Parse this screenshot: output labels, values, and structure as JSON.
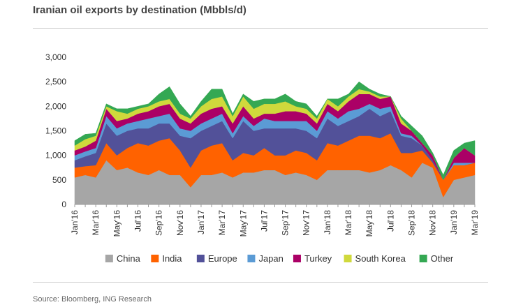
{
  "title": "Iranian oil exports by destination (Mbbls/d)",
  "source": "Source: Bloomberg, ING Research",
  "chart_data": {
    "type": "area",
    "stacked": true,
    "title": "Iranian oil exports by destination (Mbbls/d)",
    "xlabel": "",
    "ylabel": "",
    "ylim": [
      0,
      3000
    ],
    "yticks": [
      0,
      500,
      1000,
      1500,
      2000,
      2500,
      3000
    ],
    "ytick_labels": [
      "0",
      "500",
      "1,000",
      "1,500",
      "2,000",
      "2,500",
      "3,000"
    ],
    "x": [
      "Jan'16",
      "Feb'16",
      "Mar'16",
      "Apr'16",
      "May'16",
      "Jun'16",
      "Jul'16",
      "Aug'16",
      "Sep'16",
      "Oct'16",
      "Nov'16",
      "Dec'16",
      "Jan'17",
      "Feb'17",
      "Mar'17",
      "Apr'17",
      "May'17",
      "Jun'17",
      "Jul'17",
      "Aug'17",
      "Sep'17",
      "Oct'17",
      "Nov'17",
      "Dec'17",
      "Jan'18",
      "Feb'18",
      "Mar'18",
      "Apr'18",
      "May'18",
      "Jun'18",
      "Jul'18",
      "Aug'18",
      "Sep'18",
      "Oct'18",
      "Nov'18",
      "Dec'18",
      "Jan'19",
      "Feb'19",
      "Mar'19"
    ],
    "xtick_labels": [
      "Jan'16",
      "Mar'16",
      "May'16",
      "Jul'16",
      "Sep'16",
      "Nov'16",
      "Jan'17",
      "Mar'17",
      "May'17",
      "Jul'17",
      "Sep'17",
      "Nov'17",
      "Jan'18",
      "Mar'18",
      "May'18",
      "Jul'18",
      "Sep'18",
      "Nov'18",
      "Jan'19",
      "Mar'19"
    ],
    "legend_position": "bottom",
    "grid": false,
    "series": [
      {
        "name": "China",
        "color": "#a6a6a6",
        "values": [
          550,
          600,
          550,
          900,
          700,
          750,
          650,
          600,
          700,
          600,
          600,
          350,
          600,
          600,
          650,
          550,
          650,
          650,
          700,
          700,
          600,
          650,
          600,
          500,
          700,
          700,
          700,
          700,
          650,
          700,
          800,
          700,
          550,
          850,
          750,
          150,
          500,
          550,
          600
        ]
      },
      {
        "name": "India",
        "color": "#ff6200",
        "values": [
          200,
          180,
          250,
          350,
          300,
          400,
          600,
          600,
          600,
          750,
          500,
          400,
          500,
          600,
          600,
          350,
          400,
          350,
          450,
          300,
          400,
          450,
          450,
          400,
          550,
          500,
          600,
          700,
          750,
          650,
          650,
          350,
          500,
          250,
          100,
          350,
          300,
          250,
          250
        ]
      },
      {
        "name": "Europe",
        "color": "#525199",
        "values": [
          150,
          200,
          250,
          400,
          400,
          350,
          300,
          350,
          350,
          300,
          300,
          600,
          400,
          400,
          450,
          450,
          650,
          500,
          400,
          550,
          550,
          450,
          450,
          450,
          500,
          400,
          400,
          400,
          550,
          450,
          450,
          350,
          300,
          100,
          50,
          0,
          0,
          0,
          0
        ]
      },
      {
        "name": "Japan",
        "color": "#5b9bd5",
        "values": [
          100,
          100,
          100,
          150,
          150,
          150,
          150,
          200,
          150,
          200,
          150,
          150,
          150,
          150,
          150,
          100,
          100,
          100,
          200,
          150,
          150,
          150,
          200,
          150,
          150,
          150,
          200,
          150,
          100,
          150,
          100,
          50,
          50,
          0,
          0,
          0,
          50,
          50,
          0
        ]
      },
      {
        "name": "Turkey",
        "color": "#ab0066",
        "values": [
          100,
          100,
          150,
          150,
          150,
          100,
          150,
          150,
          200,
          200,
          200,
          150,
          200,
          200,
          150,
          200,
          200,
          150,
          100,
          150,
          200,
          200,
          150,
          150,
          150,
          150,
          200,
          300,
          200,
          200,
          200,
          200,
          100,
          50,
          100,
          0,
          100,
          300,
          150
        ]
      },
      {
        "name": "South Korea",
        "color": "#d0d93c",
        "values": [
          100,
          150,
          100,
          50,
          200,
          100,
          100,
          100,
          100,
          100,
          100,
          100,
          150,
          200,
          200,
          150,
          200,
          200,
          200,
          200,
          200,
          100,
          100,
          100,
          100,
          100,
          100,
          100,
          50,
          50,
          0,
          100,
          0,
          0,
          0,
          0,
          0,
          0,
          0
        ]
      },
      {
        "name": "Other",
        "color": "#34a853",
        "values": [
          100,
          100,
          50,
          50,
          50,
          100,
          50,
          50,
          150,
          250,
          200,
          50,
          100,
          200,
          150,
          50,
          50,
          150,
          100,
          100,
          150,
          100,
          100,
          50,
          0,
          150,
          50,
          150,
          50,
          50,
          0,
          50,
          100,
          150,
          50,
          100,
          150,
          100,
          300
        ]
      }
    ]
  }
}
